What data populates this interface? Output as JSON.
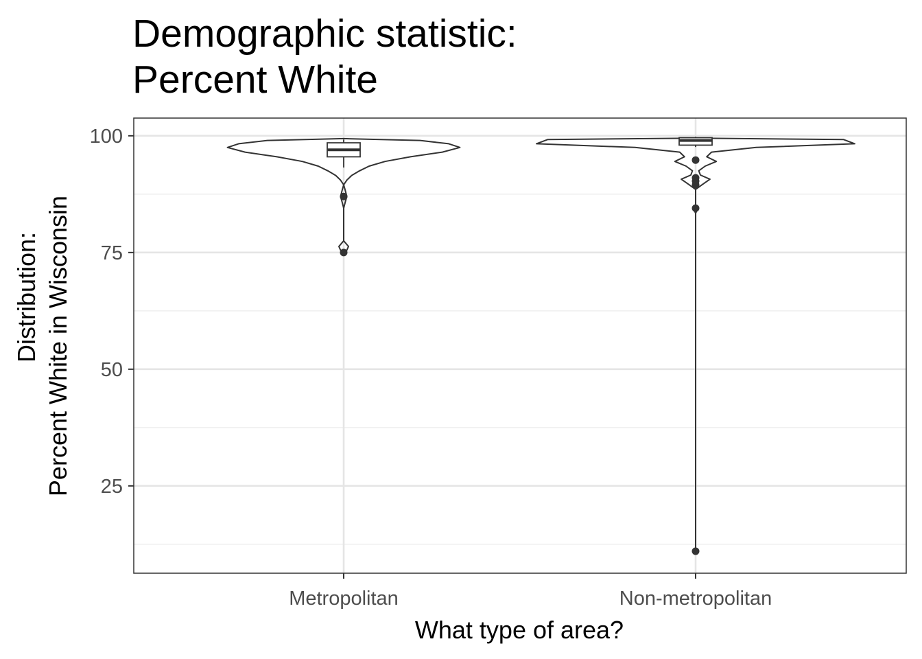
{
  "chart_data": {
    "type": "violin",
    "title_lines": [
      "Demographic statistic:",
      "Percent White"
    ],
    "xlabel": "What type of area?",
    "ylabel_lines": [
      "Distribution:",
      "Percent White in Wisconsin"
    ],
    "categories": [
      "Metropolitan",
      "Non-metropolitan"
    ],
    "ylim": [
      6.3,
      103.8
    ],
    "yticks": [
      25,
      50,
      75,
      100
    ],
    "grid": true,
    "series": [
      {
        "category": "Metropolitan",
        "violin_profile": [
          [
            74.8,
            0.0
          ],
          [
            75.5,
            0.02
          ],
          [
            76.3,
            0.03
          ],
          [
            77.5,
            0.0
          ],
          [
            80.0,
            0.0
          ],
          [
            84.5,
            0.0
          ],
          [
            85.8,
            0.01
          ],
          [
            87.0,
            0.02
          ],
          [
            88.3,
            0.01
          ],
          [
            89.5,
            0.0
          ],
          [
            90.5,
            0.02
          ],
          [
            91.5,
            0.05
          ],
          [
            92.5,
            0.1
          ],
          [
            93.5,
            0.16
          ],
          [
            94.5,
            0.26
          ],
          [
            95.5,
            0.42
          ],
          [
            96.5,
            0.62
          ],
          [
            97.5,
            0.73
          ],
          [
            98.3,
            0.66
          ],
          [
            99.0,
            0.48
          ],
          [
            99.4,
            0.0
          ]
        ],
        "box": {
          "lower_whisker": 93.2,
          "q1": 95.5,
          "median": 97.0,
          "q3": 98.5,
          "upper_whisker": 99.2
        },
        "outliers": [
          87.0,
          75.0
        ]
      },
      {
        "category": "Non-metropolitan",
        "violin_profile": [
          [
            10.6,
            0.0
          ],
          [
            11.0,
            0.012
          ],
          [
            11.5,
            0.0
          ],
          [
            20.0,
            0.0
          ],
          [
            60.0,
            0.0
          ],
          [
            83.4,
            0.0
          ],
          [
            84.3,
            0.012
          ],
          [
            85.2,
            0.0
          ],
          [
            88.5,
            0.0
          ],
          [
            89.5,
            0.04
          ],
          [
            90.7,
            0.09
          ],
          [
            91.6,
            0.03
          ],
          [
            92.5,
            0.02
          ],
          [
            93.5,
            0.06
          ],
          [
            94.5,
            0.13
          ],
          [
            95.5,
            0.07
          ],
          [
            96.5,
            0.1
          ],
          [
            97.5,
            0.38
          ],
          [
            98.3,
            1.0
          ],
          [
            99.2,
            0.93
          ],
          [
            99.5,
            0.0
          ]
        ],
        "box": {
          "lower_whisker": 97.6,
          "q1": 98.0,
          "median": 99.0,
          "q3": 99.6,
          "upper_whisker": 99.8
        },
        "outliers": [
          94.8,
          91.0,
          90.3,
          89.5,
          84.5,
          11.0
        ]
      }
    ]
  }
}
